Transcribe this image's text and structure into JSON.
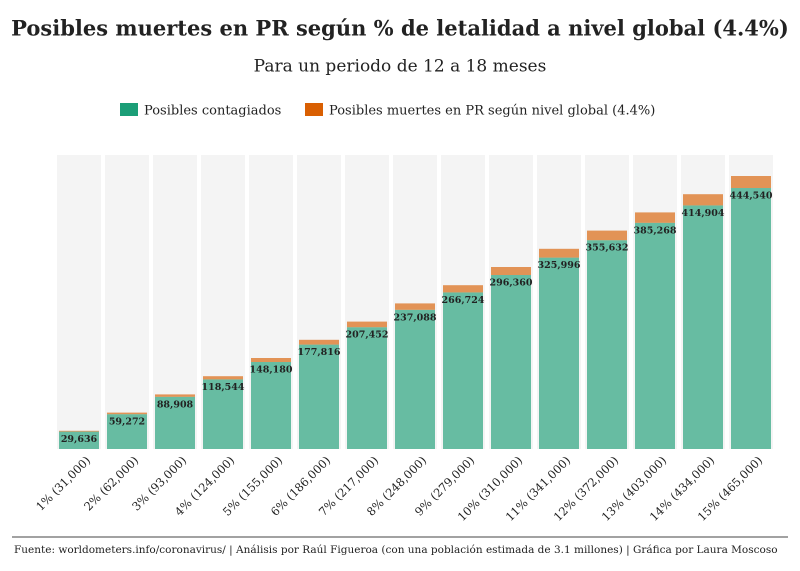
{
  "chart_data": {
    "type": "stacked_bar",
    "title": "Posibles muertes en PR según % de letalidad a nivel global (4.4%)",
    "subtitle": "Para un periodo de 12 a 18 meses",
    "categories": [
      "1% (31,000)",
      "2% (62,000)",
      "3% (93,000)",
      "4% (124,000)",
      "5% (155,000)",
      "6% (186,000)",
      "7% (217,000)",
      "8% (248,000)",
      "9% (279,000)",
      "10% (310,000)",
      "11% (341,000)",
      "12% (372,000)",
      "13% (403,000)",
      "14% (434,000)",
      "15% (465,000)"
    ],
    "series": [
      {
        "name": "Posibles contagiados",
        "color": "#1b9e77",
        "values": [
          29636,
          59272,
          88908,
          118544,
          148180,
          177816,
          207452,
          237088,
          266724,
          296360,
          325996,
          355632,
          385268,
          414904,
          444540
        ],
        "value_labels": [
          "29,636",
          "59,272",
          "88,908",
          "118,544",
          "148,180",
          "177,816",
          "207,452",
          "237,088",
          "266,724",
          "296,360",
          "325,996",
          "355,632",
          "385,268",
          "414,904",
          "444,540"
        ]
      },
      {
        "name": "Posibles muertes en PR según nivel global (4.4%)",
        "color": "#d95f02",
        "values": [
          1364,
          2728,
          4092,
          5456,
          6820,
          8184,
          9548,
          10912,
          12276,
          13640,
          15004,
          16368,
          17732,
          19096,
          20460
        ]
      }
    ],
    "source": "Fuente: worldometers.info/coronavirus/ | Análisis por Raúl Figueroa (con una población estimada de 3.1 millones) | Gráfica por Laura Moscoso"
  }
}
